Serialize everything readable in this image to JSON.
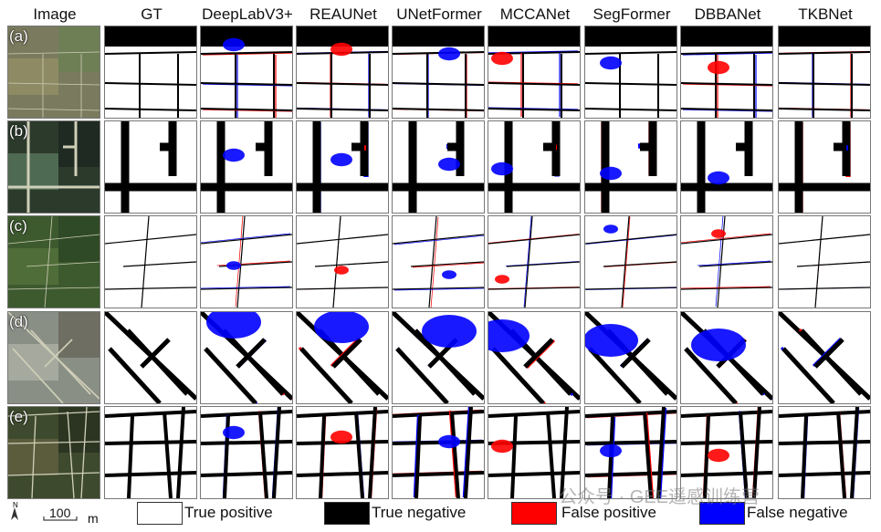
{
  "columns": [
    "Image",
    "GT",
    "DeepLabV3+",
    "REAUNet",
    "UNetFormer",
    "MCCANet",
    "SegFormer",
    "DBBANet",
    "TKBNet"
  ],
  "rows": [
    "(a)",
    "(b)",
    "(c)",
    "(d)",
    "(e)"
  ],
  "legend": [
    {
      "label": "True positive",
      "color": "#ffffff"
    },
    {
      "label": "True negative",
      "color": "#000000"
    },
    {
      "label": "False positive",
      "color": "#ff0000"
    },
    {
      "label": "False negative",
      "color": "#0000ff"
    }
  ],
  "scale": {
    "value": "100",
    "unit": "m",
    "north": "N"
  },
  "watermark": "公众号 · GEE遥感训练营"
}
